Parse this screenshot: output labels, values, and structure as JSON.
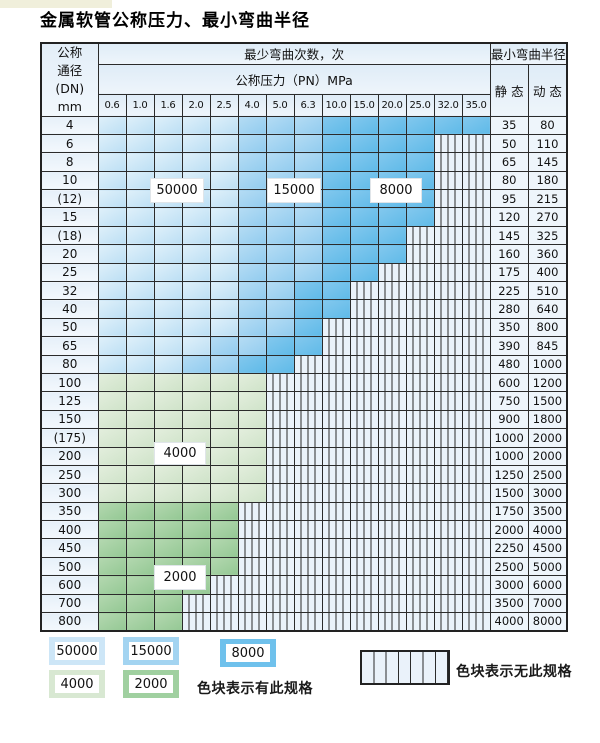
{
  "title": "金属软管公称压力、最小弯曲半径",
  "table": {
    "dn_header_lines": [
      "公称",
      "通径",
      "(DN)",
      "mm"
    ],
    "bend_cycles_header": "最少弯曲次数，次",
    "pressure_header": "公称压力（PN）MPa",
    "radius_header": "最小弯曲半径",
    "static_header": "静 态",
    "dynamic_header": "动 态"
  },
  "chart_data": {
    "type": "heatmap",
    "title": "金属软管公称压力、最小弯曲半径",
    "x_label": "公称压力（PN）MPa",
    "y_label": "公称通径 (DN) mm",
    "value_label": "最少弯曲次数，次",
    "pressure_cols": [
      "0.6",
      "1.0",
      "1.6",
      "2.0",
      "2.5",
      "4.0",
      "5.0",
      "6.3",
      "10.0",
      "15.0",
      "20.0",
      "25.0",
      "32.0",
      "35.0"
    ],
    "cell_levels": {
      "L": 50000,
      "M": 15000,
      "D": 8000,
      "g": 4000,
      "G": 2000,
      "x": null
    },
    "level_meaning": "字母=最少弯曲次数色块, x=无此规格(条纹)",
    "radius_cols": [
      "静 态",
      "动 态"
    ],
    "rows": [
      {
        "dn": "4",
        "cycles": "LLLLLMMMDDDDDD",
        "static": "35",
        "dynamic": "80"
      },
      {
        "dn": "6",
        "cycles": "LLLLLMMMDDDDxx",
        "static": "50",
        "dynamic": "110"
      },
      {
        "dn": "8",
        "cycles": "LLLLLMMMDDDDxx",
        "static": "65",
        "dynamic": "145"
      },
      {
        "dn": "10",
        "cycles": "LLLLLMMMDDDDxx",
        "static": "80",
        "dynamic": "180"
      },
      {
        "dn": "(12)",
        "cycles": "LLLLLMMMDDDDxx",
        "static": "95",
        "dynamic": "215"
      },
      {
        "dn": "15",
        "cycles": "LLLLLMMMDDDDxx",
        "static": "120",
        "dynamic": "270"
      },
      {
        "dn": "(18)",
        "cycles": "LLLLLMMMDDDxxx",
        "static": "145",
        "dynamic": "325"
      },
      {
        "dn": "20",
        "cycles": "LLLLLMMMDDDxxx",
        "static": "160",
        "dynamic": "360"
      },
      {
        "dn": "25",
        "cycles": "LLLLLMMMDDxxxx",
        "static": "175",
        "dynamic": "400"
      },
      {
        "dn": "32",
        "cycles": "LLLLLMMDDxxxxx",
        "static": "225",
        "dynamic": "510"
      },
      {
        "dn": "40",
        "cycles": "LLLLLMMDDxxxxx",
        "static": "280",
        "dynamic": "640"
      },
      {
        "dn": "50",
        "cycles": "LLLLLMMDxxxxxx",
        "static": "350",
        "dynamic": "800"
      },
      {
        "dn": "65",
        "cycles": "LLLLMMDDxxxxxx",
        "static": "390",
        "dynamic": "845"
      },
      {
        "dn": "80",
        "cycles": "LLLMMDDxxxxxxx",
        "static": "480",
        "dynamic": "1000"
      },
      {
        "dn": "100",
        "cycles": "ggggggxxxxxxxx",
        "static": "600",
        "dynamic": "1200"
      },
      {
        "dn": "125",
        "cycles": "ggggggxxxxxxxx",
        "static": "750",
        "dynamic": "1500"
      },
      {
        "dn": "150",
        "cycles": "ggggggxxxxxxxx",
        "static": "900",
        "dynamic": "1800"
      },
      {
        "dn": "(175)",
        "cycles": "ggggggxxxxxxxx",
        "static": "1000",
        "dynamic": "2000"
      },
      {
        "dn": "200",
        "cycles": "ggggggxxxxxxxx",
        "static": "1000",
        "dynamic": "2000"
      },
      {
        "dn": "250",
        "cycles": "ggggggxxxxxxxx",
        "static": "1250",
        "dynamic": "2500"
      },
      {
        "dn": "300",
        "cycles": "ggggggxxxxxxxx",
        "static": "1500",
        "dynamic": "3000"
      },
      {
        "dn": "350",
        "cycles": "GGGGGxxxxxxxxx",
        "static": "1750",
        "dynamic": "3500"
      },
      {
        "dn": "400",
        "cycles": "GGGGGxxxxxxxxx",
        "static": "2000",
        "dynamic": "4000"
      },
      {
        "dn": "450",
        "cycles": "GGGGGxxxxxxxxx",
        "static": "2250",
        "dynamic": "4500"
      },
      {
        "dn": "500",
        "cycles": "GGGGGxxxxxxxxx",
        "static": "2500",
        "dynamic": "5000"
      },
      {
        "dn": "600",
        "cycles": "GGGGxxxxxxxxxx",
        "static": "3000",
        "dynamic": "6000"
      },
      {
        "dn": "700",
        "cycles": "GGGxxxxxxxxxxx",
        "static": "3500",
        "dynamic": "7000"
      },
      {
        "dn": "800",
        "cycles": "GGGxxxxxxxxxxx",
        "static": "4000",
        "dynamic": "8000"
      }
    ]
  },
  "legend": {
    "items": [
      {
        "level": "L",
        "label": "50000"
      },
      {
        "level": "M",
        "label": "15000"
      },
      {
        "level": "D",
        "label": "8000"
      },
      {
        "level": "g",
        "label": "4000"
      },
      {
        "level": "G",
        "label": "2000"
      }
    ],
    "has_spec_text": "色块表示有此规格",
    "no_spec_text": "色块表示无此规格"
  },
  "colors": {
    "blue_50000": "#cde6f7",
    "blue_15000": "#a3d4f1",
    "blue_8000": "#6fc1ec",
    "green_4000": "#d8e8d2",
    "green_2000": "#a0d0a0",
    "stripe_bg": "#eaf2fa",
    "grid_line": "#2b2b2b"
  }
}
